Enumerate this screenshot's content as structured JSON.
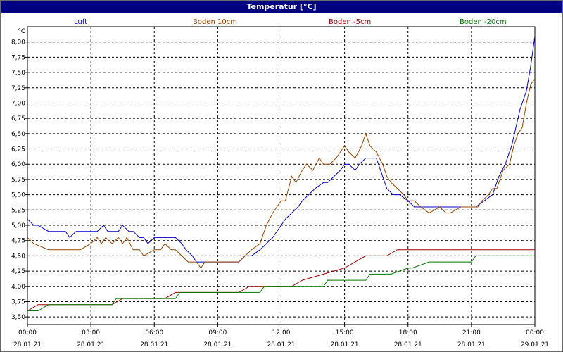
{
  "window": {
    "title": "Temperatur [°C]"
  },
  "chart_data": {
    "type": "line",
    "title": "Temperatur [°C]",
    "yunit": "°C",
    "ylim": [
      3.375,
      8.25
    ],
    "yticks": [
      "8,00",
      "7,75",
      "7,50",
      "7,25",
      "7,00",
      "6,75",
      "6,50",
      "6,25",
      "6,00",
      "5,75",
      "5,50",
      "5,25",
      "5,00",
      "4,75",
      "4,50",
      "4,25",
      "4,00",
      "3,75",
      "3,50"
    ],
    "ytick_values": [
      8.0,
      7.75,
      7.5,
      7.25,
      7.0,
      6.75,
      6.5,
      6.25,
      6.0,
      5.75,
      5.5,
      5.25,
      5.0,
      4.75,
      4.5,
      4.25,
      4.0,
      3.75,
      3.5
    ],
    "xlim_hours": [
      0,
      24
    ],
    "xticks_time": [
      "00:00",
      "03:00",
      "06:00",
      "09:00",
      "12:00",
      "15:00",
      "18:00",
      "21:00",
      "00:00"
    ],
    "xticks_date": [
      "28.01.21",
      "28.01.21",
      "28.01.21",
      "28.01.21",
      "28.01.21",
      "28.01.21",
      "28.01.21",
      "28.01.21",
      "29.01.21"
    ],
    "grid": true,
    "legend_position": "top",
    "series": [
      {
        "name": "Luft",
        "color": "#0000cc",
        "x": [
          0,
          0.3,
          0.5,
          1,
          1.8,
          2,
          2.3,
          2.5,
          2.8,
          3,
          3.3,
          3.6,
          3.8,
          4,
          4.3,
          4.5,
          4.8,
          5,
          5.3,
          5.5,
          5.7,
          6,
          6.5,
          7,
          7.3,
          7.5,
          7.8,
          8,
          8.5,
          9,
          9.5,
          10,
          10.3,
          10.6,
          11,
          11.3,
          11.6,
          12,
          12.2,
          12.5,
          12.8,
          13,
          13.3,
          13.6,
          14,
          14.2,
          14.5,
          14.8,
          15,
          15.2,
          15.5,
          15.7,
          16,
          16.3,
          16.5,
          16.8,
          17,
          17.3,
          17.6,
          18,
          18.3,
          18.6,
          19,
          19.5,
          20,
          20.5,
          21,
          21.2,
          21.6,
          22,
          22.3,
          22.6,
          22.9,
          23.1,
          23.3,
          23.6,
          23.8,
          24
        ],
        "y": [
          5.1,
          5.0,
          5.0,
          4.9,
          4.9,
          4.8,
          4.9,
          4.9,
          4.9,
          4.9,
          4.9,
          5.0,
          4.9,
          4.9,
          4.9,
          5.0,
          4.9,
          4.9,
          4.8,
          4.8,
          4.7,
          4.8,
          4.8,
          4.8,
          4.7,
          4.6,
          4.5,
          4.4,
          4.4,
          4.4,
          4.4,
          4.4,
          4.5,
          4.5,
          4.6,
          4.7,
          4.8,
          5.0,
          5.1,
          5.2,
          5.3,
          5.4,
          5.5,
          5.6,
          5.7,
          5.7,
          5.8,
          5.9,
          6.0,
          6.0,
          5.9,
          6.0,
          6.1,
          6.1,
          6.1,
          5.8,
          5.6,
          5.5,
          5.5,
          5.4,
          5.3,
          5.3,
          5.3,
          5.3,
          5.3,
          5.3,
          5.3,
          5.3,
          5.4,
          5.5,
          5.8,
          6.0,
          6.3,
          6.6,
          6.9,
          7.2,
          7.6,
          8.1
        ]
      },
      {
        "name": "Boden 10cm",
        "color": "#994400",
        "x": [
          0,
          0.3,
          1,
          2,
          2.5,
          3,
          3.3,
          3.5,
          3.7,
          4,
          4.3,
          4.5,
          4.7,
          5,
          5.3,
          5.5,
          6,
          6.3,
          6.5,
          6.8,
          7,
          7.3,
          7.6,
          8,
          8.2,
          8.4,
          8.6,
          9,
          9.5,
          10,
          10.3,
          10.6,
          11,
          11.3,
          11.6,
          12,
          12.2,
          12.5,
          12.7,
          13,
          13.2,
          13.5,
          13.8,
          14,
          14.3,
          14.6,
          15,
          15.2,
          15.5,
          15.8,
          16,
          16.2,
          16.5,
          16.8,
          17,
          17.2,
          17.5,
          17.8,
          18,
          18.3,
          18.6,
          19,
          19.5,
          19.8,
          20,
          20.5,
          21,
          21.3,
          21.5,
          21.8,
          22,
          22.2,
          22.5,
          22.8,
          23,
          23.2,
          23.4,
          23.6,
          23.8,
          24
        ],
        "y": [
          4.8,
          4.7,
          4.6,
          4.6,
          4.6,
          4.7,
          4.8,
          4.7,
          4.8,
          4.7,
          4.8,
          4.7,
          4.8,
          4.6,
          4.6,
          4.5,
          4.6,
          4.6,
          4.7,
          4.6,
          4.6,
          4.5,
          4.4,
          4.4,
          4.3,
          4.4,
          4.4,
          4.4,
          4.4,
          4.4,
          4.5,
          4.6,
          4.7,
          5.0,
          5.2,
          5.4,
          5.4,
          5.8,
          5.7,
          5.9,
          6.0,
          5.9,
          6.1,
          6.0,
          6.0,
          6.1,
          6.3,
          6.2,
          6.1,
          6.3,
          6.5,
          6.3,
          6.2,
          6.0,
          5.8,
          5.7,
          5.6,
          5.5,
          5.4,
          5.4,
          5.3,
          5.2,
          5.3,
          5.2,
          5.2,
          5.3,
          5.3,
          5.3,
          5.4,
          5.5,
          5.6,
          5.6,
          5.9,
          6.0,
          6.3,
          6.5,
          6.6,
          7.0,
          7.3,
          7.4
        ]
      },
      {
        "name": "Boden -5cm",
        "color": "#990000",
        "x": [
          0,
          0.5,
          1,
          4,
          4.5,
          6.5,
          7,
          8,
          9,
          10,
          10.5,
          12,
          12.5,
          13,
          14,
          15,
          15.5,
          16,
          17,
          17.5,
          18,
          19,
          20,
          21,
          22,
          23,
          24
        ],
        "y": [
          3.6,
          3.7,
          3.7,
          3.7,
          3.8,
          3.8,
          3.9,
          3.9,
          3.9,
          3.9,
          4.0,
          4.0,
          4.0,
          4.1,
          4.2,
          4.3,
          4.4,
          4.5,
          4.5,
          4.6,
          4.6,
          4.6,
          4.6,
          4.6,
          4.6,
          4.6,
          4.6
        ]
      },
      {
        "name": "Boden -20cm",
        "color": "#007700",
        "x": [
          0,
          0.5,
          1,
          4,
          4.2,
          7,
          7.2,
          11,
          11.2,
          14,
          14.2,
          16,
          16.2,
          17,
          17.2,
          18,
          18.2,
          19,
          19.2,
          21,
          21.2,
          22,
          24
        ],
        "y": [
          3.6,
          3.6,
          3.7,
          3.7,
          3.8,
          3.8,
          3.9,
          3.9,
          4.0,
          4.0,
          4.1,
          4.1,
          4.2,
          4.2,
          4.2,
          4.3,
          4.3,
          4.4,
          4.4,
          4.4,
          4.5,
          4.5,
          4.5
        ]
      }
    ]
  }
}
